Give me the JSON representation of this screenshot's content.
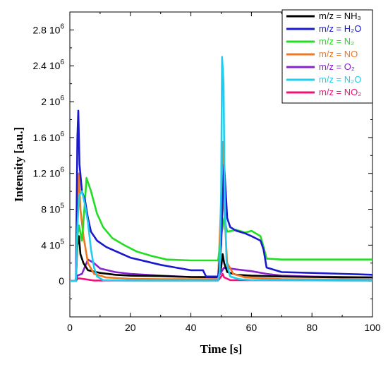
{
  "chart_data": {
    "type": "line",
    "xlabel": "Time [s]",
    "ylabel": "Intensity [a.u.]",
    "xlim": [
      0,
      100
    ],
    "ylim": [
      -400000,
      3000000
    ],
    "grid": false,
    "legend_position": "top-right",
    "x_ticks": [
      {
        "value": 0,
        "label": "0"
      },
      {
        "value": 20,
        "label": "20"
      },
      {
        "value": 40,
        "label": "40"
      },
      {
        "value": 60,
        "label": "60"
      },
      {
        "value": 80,
        "label": "80"
      },
      {
        "value": 100,
        "label": "100"
      }
    ],
    "y_ticks": [
      {
        "value": 0,
        "mantissa": "0",
        "exp": ""
      },
      {
        "value": 400000,
        "mantissa": "4 10",
        "exp": "5"
      },
      {
        "value": 800000,
        "mantissa": "8 10",
        "exp": "5"
      },
      {
        "value": 1200000,
        "mantissa": "1.2 10",
        "exp": "6"
      },
      {
        "value": 1600000,
        "mantissa": "1.6 10",
        "exp": "6"
      },
      {
        "value": 2000000,
        "mantissa": "2 10",
        "exp": "6"
      },
      {
        "value": 2400000,
        "mantissa": "2.4 10",
        "exp": "6"
      },
      {
        "value": 2800000,
        "mantissa": "2.8 10",
        "exp": "6"
      }
    ],
    "series": [
      {
        "name": "m/z = NH₃",
        "color": "#000000",
        "points": [
          [
            0,
            0
          ],
          [
            2,
            0
          ],
          [
            2.5,
            400000
          ],
          [
            3,
            500000
          ],
          [
            3.5,
            300000
          ],
          [
            4.5,
            200000
          ],
          [
            6,
            120000
          ],
          [
            10,
            90000
          ],
          [
            15,
            70000
          ],
          [
            20,
            60000
          ],
          [
            30,
            55000
          ],
          [
            40,
            45000
          ],
          [
            49,
            45000
          ],
          [
            50,
            150000
          ],
          [
            50.5,
            300000
          ],
          [
            51,
            200000
          ],
          [
            52,
            100000
          ],
          [
            55,
            70000
          ],
          [
            60,
            60000
          ],
          [
            70,
            50000
          ],
          [
            80,
            45000
          ],
          [
            90,
            40000
          ],
          [
            100,
            40000
          ]
        ]
      },
      {
        "name": "m/z = H₂O",
        "color": "#1a1acc",
        "points": [
          [
            0,
            0
          ],
          [
            2,
            0
          ],
          [
            2.5,
            1600000
          ],
          [
            2.8,
            1900000
          ],
          [
            3.2,
            1300000
          ],
          [
            4,
            1000000
          ],
          [
            5,
            900000
          ],
          [
            6,
            700000
          ],
          [
            7,
            550000
          ],
          [
            9,
            450000
          ],
          [
            12,
            380000
          ],
          [
            16,
            320000
          ],
          [
            20,
            260000
          ],
          [
            25,
            220000
          ],
          [
            30,
            180000
          ],
          [
            35,
            150000
          ],
          [
            40,
            120000
          ],
          [
            44,
            120000
          ],
          [
            45,
            50000
          ],
          [
            49,
            50000
          ],
          [
            50,
            400000
          ],
          [
            50.5,
            900000
          ],
          [
            51,
            1300000
          ],
          [
            51.5,
            1000000
          ],
          [
            52,
            700000
          ],
          [
            53,
            600000
          ],
          [
            55,
            560000
          ],
          [
            58,
            530000
          ],
          [
            60,
            500000
          ],
          [
            63,
            450000
          ],
          [
            64,
            350000
          ],
          [
            65,
            150000
          ],
          [
            70,
            100000
          ],
          [
            80,
            90000
          ],
          [
            90,
            80000
          ],
          [
            100,
            70000
          ]
        ]
      },
      {
        "name": "m/z = N₂",
        "color": "#22dd22",
        "points": [
          [
            0,
            0
          ],
          [
            2,
            0
          ],
          [
            2.5,
            500000
          ],
          [
            3,
            620000
          ],
          [
            4,
            450000
          ],
          [
            5,
            900000
          ],
          [
            5.5,
            1150000
          ],
          [
            7,
            1000000
          ],
          [
            9,
            750000
          ],
          [
            11,
            600000
          ],
          [
            14,
            480000
          ],
          [
            18,
            400000
          ],
          [
            22,
            330000
          ],
          [
            27,
            280000
          ],
          [
            32,
            240000
          ],
          [
            40,
            230000
          ],
          [
            49,
            230000
          ],
          [
            50,
            500000
          ],
          [
            51,
            700000
          ],
          [
            52,
            550000
          ],
          [
            55,
            570000
          ],
          [
            58,
            540000
          ],
          [
            60,
            560000
          ],
          [
            63,
            500000
          ],
          [
            64,
            380000
          ],
          [
            65,
            250000
          ],
          [
            70,
            240000
          ],
          [
            80,
            240000
          ],
          [
            90,
            240000
          ],
          [
            100,
            240000
          ]
        ]
      },
      {
        "name": "m/z = NO",
        "color": "#ee7722",
        "points": [
          [
            0,
            0
          ],
          [
            2,
            0
          ],
          [
            2.5,
            900000
          ],
          [
            3,
            1200000
          ],
          [
            3.5,
            800000
          ],
          [
            4.5,
            500000
          ],
          [
            6,
            200000
          ],
          [
            8,
            80000
          ],
          [
            12,
            40000
          ],
          [
            20,
            25000
          ],
          [
            30,
            20000
          ],
          [
            49,
            20000
          ],
          [
            50,
            900000
          ],
          [
            50.5,
            1550000
          ],
          [
            51,
            800000
          ],
          [
            52,
            200000
          ],
          [
            54,
            80000
          ],
          [
            58,
            40000
          ],
          [
            70,
            20000
          ],
          [
            100,
            15000
          ]
        ]
      },
      {
        "name": "m/z = O₂",
        "color": "#8822cc",
        "points": [
          [
            0,
            0
          ],
          [
            2,
            0
          ],
          [
            2.5,
            60000
          ],
          [
            4,
            80000
          ],
          [
            6,
            240000
          ],
          [
            8,
            200000
          ],
          [
            10,
            140000
          ],
          [
            15,
            100000
          ],
          [
            20,
            80000
          ],
          [
            30,
            60000
          ],
          [
            40,
            45000
          ],
          [
            49,
            40000
          ],
          [
            50,
            100000
          ],
          [
            51,
            150000
          ],
          [
            55,
            130000
          ],
          [
            60,
            110000
          ],
          [
            65,
            80000
          ],
          [
            70,
            60000
          ],
          [
            80,
            50000
          ],
          [
            100,
            40000
          ]
        ]
      },
      {
        "name": "m/z = N₂O",
        "color": "#22ccee",
        "points": [
          [
            0,
            0
          ],
          [
            2,
            0
          ],
          [
            2.5,
            600000
          ],
          [
            3,
            950000
          ],
          [
            4,
            1000000
          ],
          [
            5,
            850000
          ],
          [
            6,
            650000
          ],
          [
            7,
            350000
          ],
          [
            8,
            150000
          ],
          [
            9,
            50000
          ],
          [
            11,
            10000
          ],
          [
            20,
            5000
          ],
          [
            49,
            5000
          ],
          [
            49.5,
            100000
          ],
          [
            50,
            1000000
          ],
          [
            50.3,
            2500000
          ],
          [
            50.8,
            2200000
          ],
          [
            51.2,
            900000
          ],
          [
            51.8,
            200000
          ],
          [
            53,
            50000
          ],
          [
            56,
            20000
          ],
          [
            60,
            10000
          ],
          [
            100,
            5000
          ]
        ]
      },
      {
        "name": "m/z = NO₂",
        "color": "#ee1177",
        "points": [
          [
            0,
            0
          ],
          [
            2,
            0
          ],
          [
            2.5,
            25000
          ],
          [
            3,
            30000
          ],
          [
            5,
            20000
          ],
          [
            8,
            5000
          ],
          [
            49,
            5000
          ],
          [
            50,
            50000
          ],
          [
            50.5,
            80000
          ],
          [
            51,
            40000
          ],
          [
            53,
            10000
          ],
          [
            100,
            5000
          ]
        ]
      }
    ]
  }
}
